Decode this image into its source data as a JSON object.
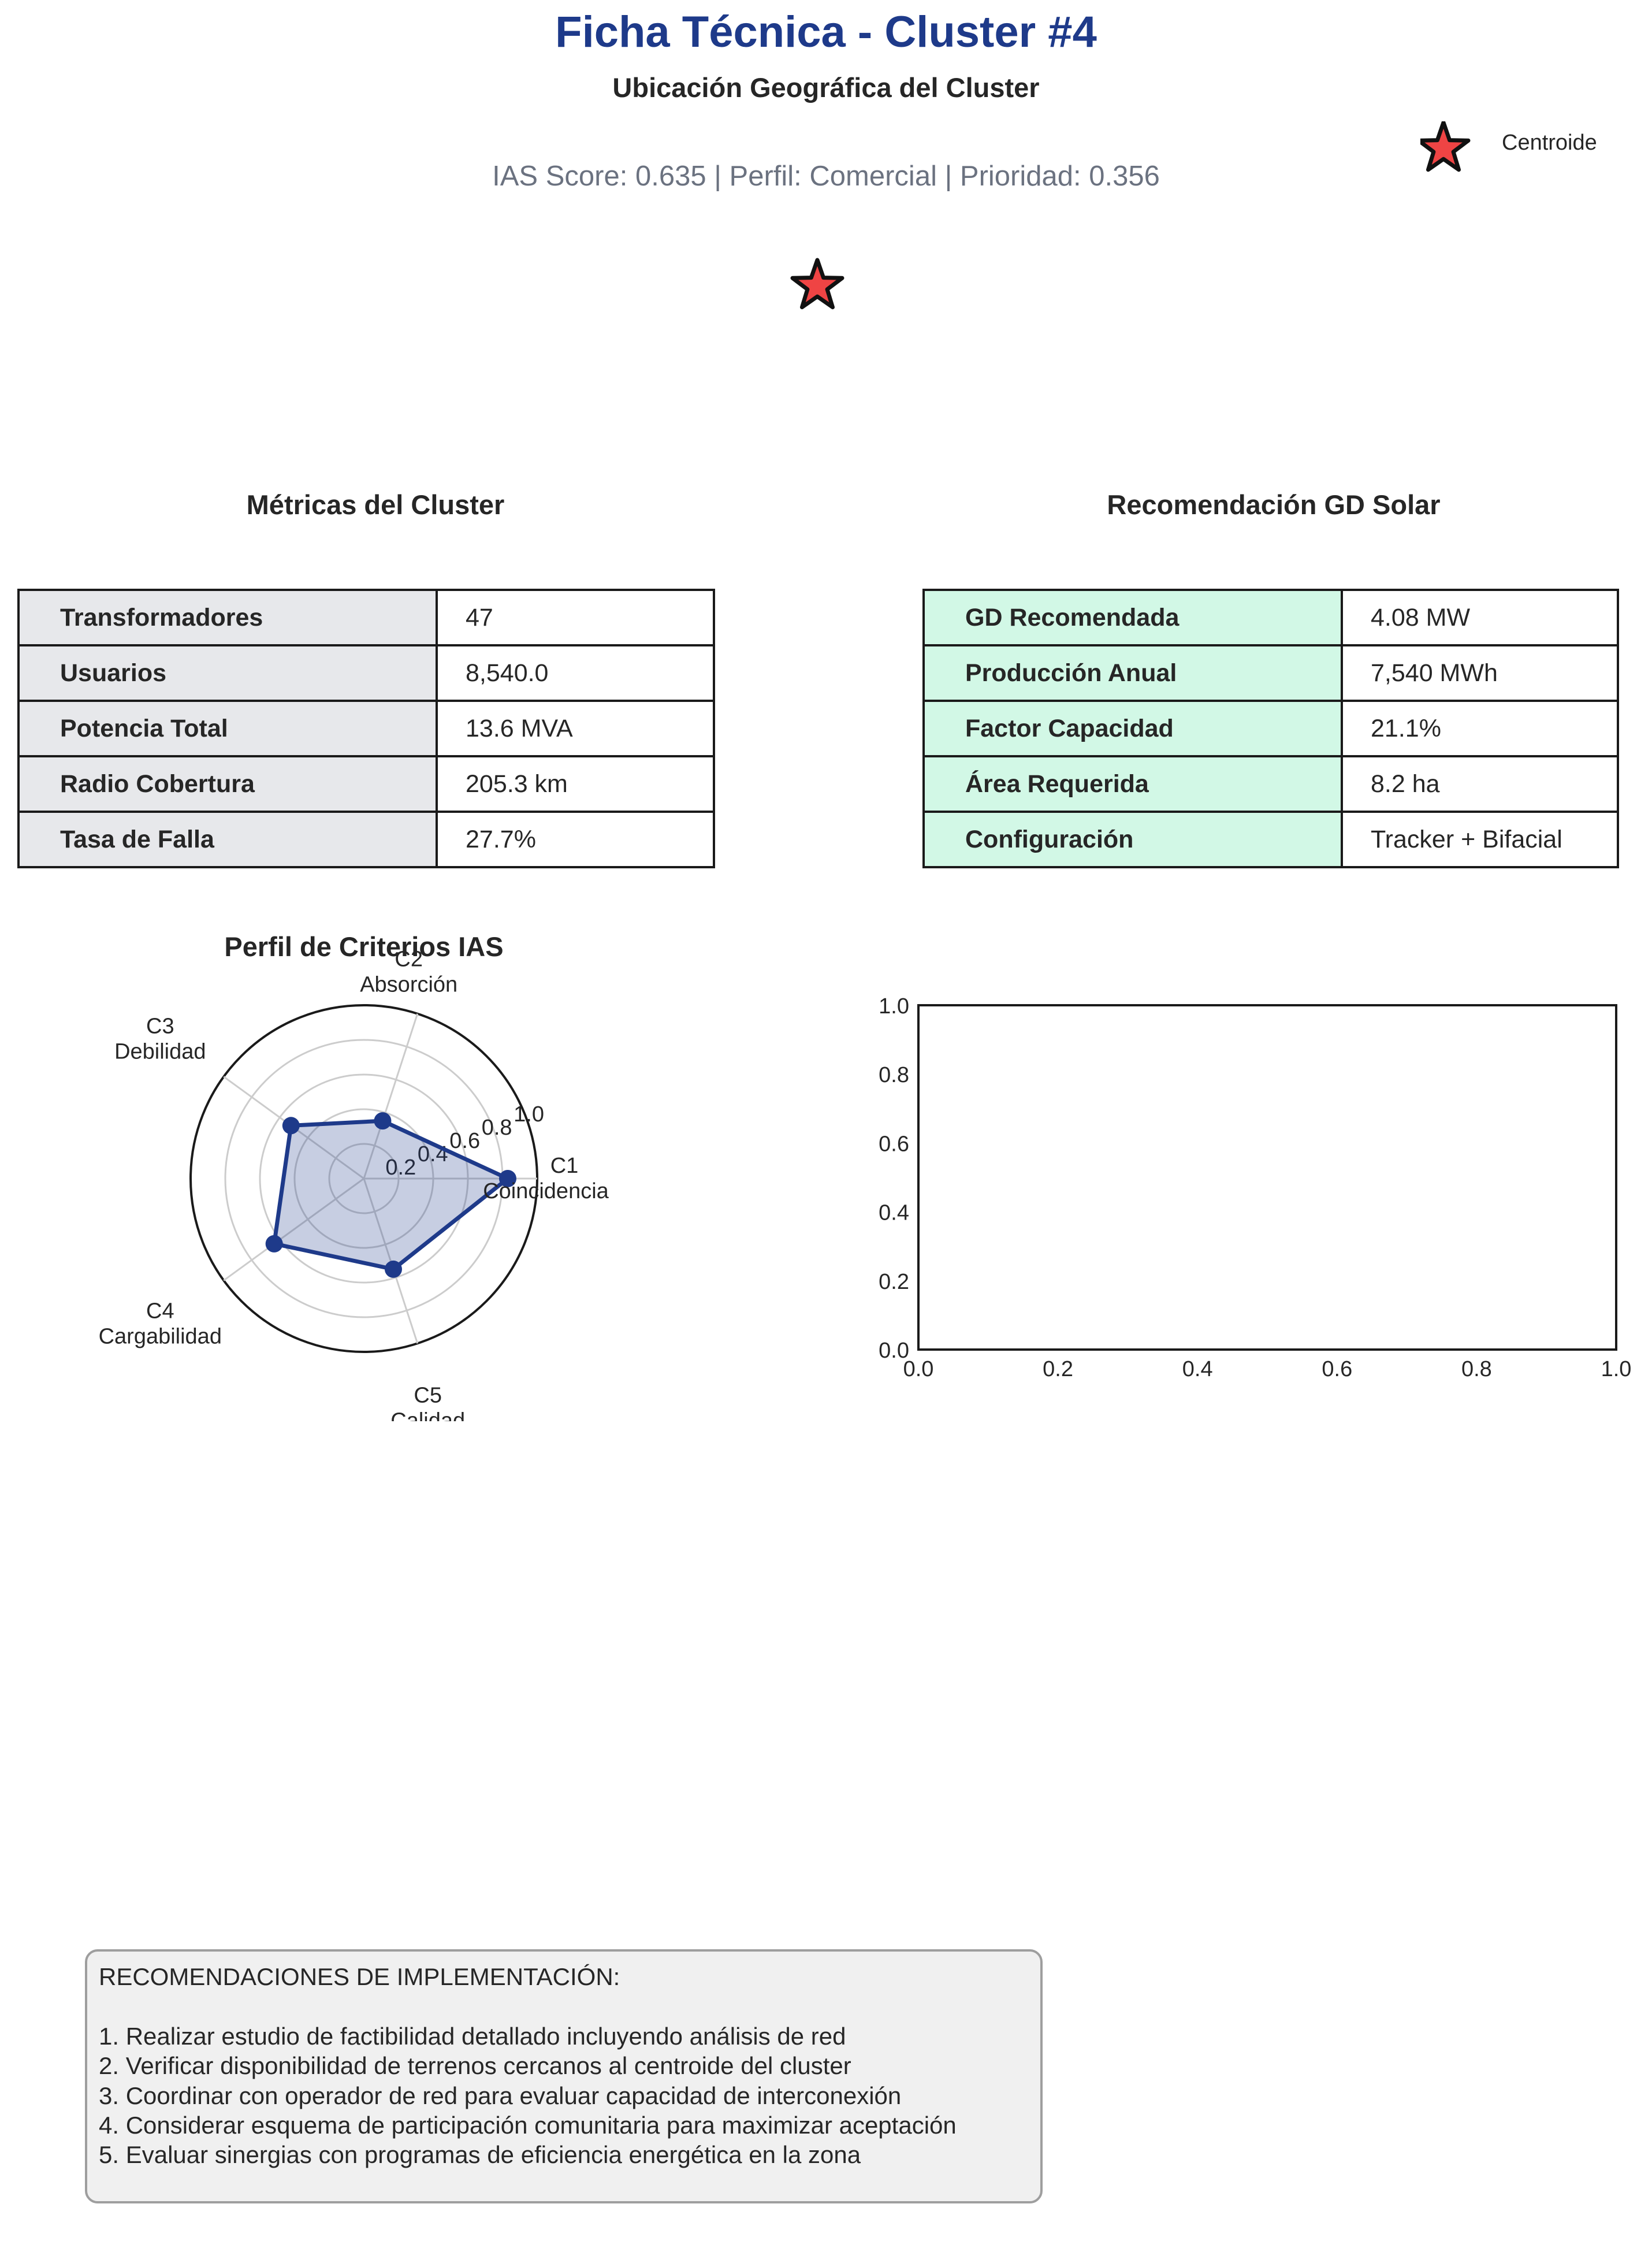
{
  "header": {
    "title": "Ficha Técnica - Cluster #4",
    "map_title": "Ubicación Geográfica del Cluster",
    "summary": "IAS Score: 0.635 | Perfil: Comercial | Prioridad: 0.356"
  },
  "map": {
    "legend_label": "Centroide",
    "marker_color": "#ef4444",
    "marker_icon": "star-icon"
  },
  "metrics": {
    "title": "Métricas del Cluster",
    "rows": [
      {
        "label": "Transformadores",
        "value": "47"
      },
      {
        "label": "Usuarios",
        "value": "8,540.0"
      },
      {
        "label": "Potencia Total",
        "value": "13.6 MVA"
      },
      {
        "label": "Radio Cobertura",
        "value": "205.3 km"
      },
      {
        "label": "Tasa de Falla",
        "value": "27.7%"
      }
    ]
  },
  "solar": {
    "title": "Recomendación GD Solar",
    "rows": [
      {
        "label": "GD Recomendada",
        "value": "4.08 MW"
      },
      {
        "label": "Producción Anual",
        "value": "7,540 MWh"
      },
      {
        "label": "Factor Capacidad",
        "value": "21.1%"
      },
      {
        "label": "Área Requerida",
        "value": "8.2 ha"
      },
      {
        "label": "Configuración",
        "value": "Tracker + Bifacial"
      }
    ]
  },
  "colors": {
    "title": "#1e3a8a",
    "radar_line": "#1e3a8a",
    "metrics_key_bg": "#e7e8eb",
    "solar_key_bg": "#d2f8e6"
  },
  "chart_data": [
    {
      "type": "radar",
      "title": "Perfil de Criterios IAS",
      "axes": [
        {
          "code": "C1",
          "name": "Coincidencia"
        },
        {
          "code": "C2",
          "name": "Absorción"
        },
        {
          "code": "C3",
          "name": "Debilidad"
        },
        {
          "code": "C4",
          "name": "Cargabilidad"
        },
        {
          "code": "C5",
          "name": "Calidad"
        }
      ],
      "values": [
        0.83,
        0.35,
        0.52,
        0.64,
        0.55
      ],
      "rlim": [
        0,
        1.0
      ],
      "rticks": [
        "0.2",
        "0.4",
        "0.6",
        "0.8",
        "1.0"
      ],
      "grid": true
    },
    {
      "type": "empty",
      "xlim": [
        0,
        1.0
      ],
      "ylim": [
        0,
        1.0
      ],
      "xticks": [
        "0.0",
        "0.2",
        "0.4",
        "0.6",
        "0.8",
        "1.0"
      ],
      "yticks": [
        "0.0",
        "0.2",
        "0.4",
        "0.6",
        "0.8",
        "1.0"
      ]
    }
  ],
  "recommendations": {
    "heading": "RECOMENDACIONES DE IMPLEMENTACIÓN:",
    "items": [
      "1. Realizar estudio de factibilidad detallado incluyendo análisis de red",
      "2. Verificar disponibilidad de terrenos cercanos al centroide del cluster",
      "3. Coordinar con operador de red para evaluar capacidad de interconexión",
      "4. Considerar esquema de participación comunitaria para maximizar aceptación",
      "5. Evaluar sinergias con programas de eficiencia energética en la zona"
    ]
  }
}
